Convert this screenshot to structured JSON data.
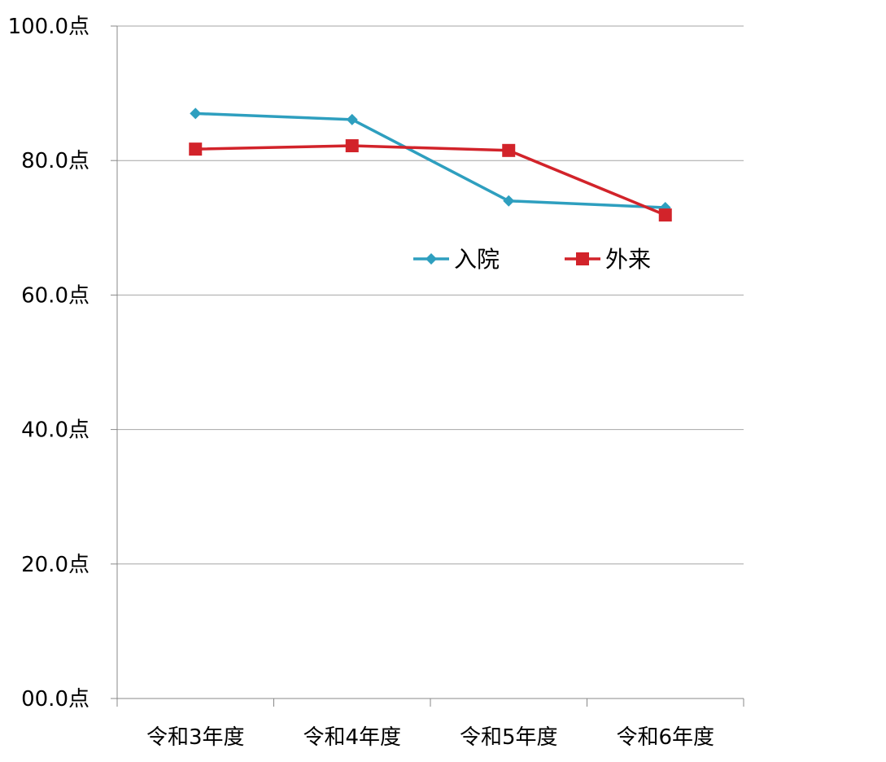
{
  "chart_data": {
    "type": "line",
    "categories": [
      "令和3年度",
      "令和4年度",
      "令和5年度",
      "令和6年度"
    ],
    "series": [
      {
        "name": "入院",
        "values": [
          87.0,
          86.1,
          74.0,
          73.0
        ],
        "color": "#2e9fbf",
        "marker": "diamond"
      },
      {
        "name": "外来",
        "values": [
          81.7,
          82.2,
          81.5,
          71.9
        ],
        "color": "#d2232a",
        "marker": "square"
      }
    ],
    "yticks": [
      "00.0点",
      "20.0点",
      "40.0点",
      "60.0点",
      "80.0点",
      "100.0点"
    ],
    "ylim": [
      0,
      100
    ],
    "grid": true,
    "legend_position": "inside-upper-right"
  }
}
